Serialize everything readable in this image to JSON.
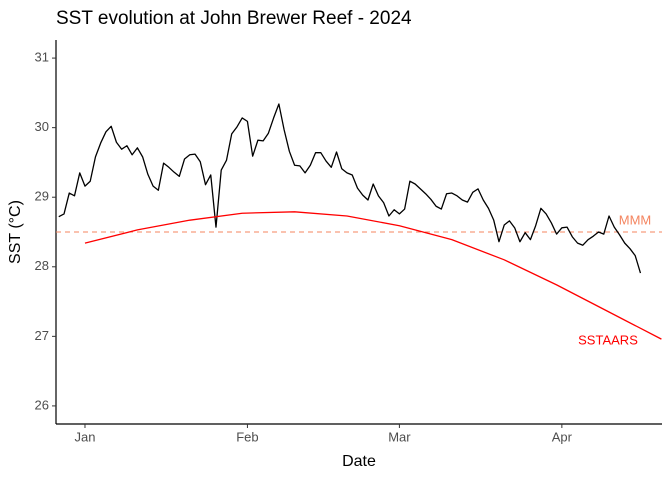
{
  "chart_data": {
    "type": "line",
    "title": "SST evolution at John Brewer Reef - 2024",
    "x_label": "Date",
    "y_label": "SST (°C)",
    "xlim": [
      -4.53,
      111.11
    ],
    "xticks": [
      {
        "value": 1,
        "label": "Jan"
      },
      {
        "value": 32,
        "label": "Feb"
      },
      {
        "value": 61,
        "label": "Mar"
      },
      {
        "value": 92,
        "label": "Apr"
      }
    ],
    "ylim": [
      25.74,
      31.26
    ],
    "yticks": [
      26,
      27,
      28,
      29,
      30,
      31
    ],
    "grid": false,
    "series": [
      {
        "color": "#000000",
        "x": [
          -4,
          -3,
          -2,
          -1,
          0,
          1,
          2,
          3,
          4,
          5,
          6,
          7,
          8,
          9,
          10,
          11,
          12,
          13,
          14,
          15,
          16,
          17,
          18,
          19,
          20,
          21,
          22,
          23,
          24,
          25,
          26,
          27,
          28,
          29,
          30,
          31,
          32,
          33,
          34,
          35,
          36,
          37,
          38,
          39,
          40,
          41,
          42,
          43,
          44,
          45,
          46,
          47,
          48,
          49,
          50,
          51,
          52,
          53,
          54,
          55,
          56,
          57,
          58,
          59,
          60,
          61,
          62,
          63,
          64,
          65,
          66,
          67,
          68,
          69,
          70,
          71,
          72,
          73,
          74,
          75,
          76,
          77,
          78,
          79,
          80,
          81,
          82,
          83,
          84,
          85,
          86,
          87,
          88,
          89,
          90,
          91,
          92,
          93,
          94,
          95,
          96,
          97,
          98,
          99,
          100,
          101,
          102,
          103,
          104,
          105,
          106,
          107
        ],
        "values": [
          28.72,
          28.76,
          29.06,
          29.02,
          29.35,
          29.16,
          29.23,
          29.58,
          29.78,
          29.94,
          30.02,
          29.79,
          29.69,
          29.74,
          29.61,
          29.71,
          29.58,
          29.33,
          29.16,
          29.1,
          29.49,
          29.43,
          29.36,
          29.3,
          29.55,
          29.61,
          29.62,
          29.51,
          29.18,
          29.32,
          28.57,
          29.39,
          29.53,
          29.91,
          30.01,
          30.14,
          30.09,
          29.59,
          29.82,
          29.81,
          29.92,
          30.14,
          30.34,
          29.97,
          29.66,
          29.46,
          29.45,
          29.35,
          29.46,
          29.64,
          29.64,
          29.52,
          29.43,
          29.65,
          29.41,
          29.35,
          29.32,
          29.13,
          29.03,
          28.96,
          29.19,
          29.02,
          28.92,
          28.73,
          28.82,
          28.76,
          28.83,
          29.23,
          29.19,
          29.12,
          29.05,
          28.97,
          28.87,
          28.83,
          29.05,
          29.06,
          29.02,
          28.96,
          28.93,
          29.07,
          29.12,
          28.96,
          28.84,
          28.67,
          28.36,
          28.6,
          28.66,
          28.56,
          28.36,
          28.49,
          28.39,
          28.59,
          28.84,
          28.76,
          28.63,
          28.47,
          28.56,
          28.57,
          28.43,
          28.34,
          28.31,
          28.39,
          28.44,
          28.5,
          28.47,
          28.73,
          28.57,
          28.46,
          28.34,
          28.26,
          28.16,
          27.91
        ]
      },
      {
        "name": "SSTAARS",
        "color": "#ff0000",
        "x": [
          1,
          11,
          21,
          31,
          41,
          51,
          61,
          71,
          81,
          91,
          101,
          111
        ],
        "values": [
          28.34,
          28.53,
          28.67,
          28.77,
          28.79,
          28.73,
          28.59,
          28.39,
          28.1,
          27.74,
          27.35,
          26.96
        ]
      }
    ],
    "hlines": [
      {
        "label": "MMM",
        "value": 28.5,
        "color": "#f4845f",
        "dashed": true
      }
    ]
  }
}
